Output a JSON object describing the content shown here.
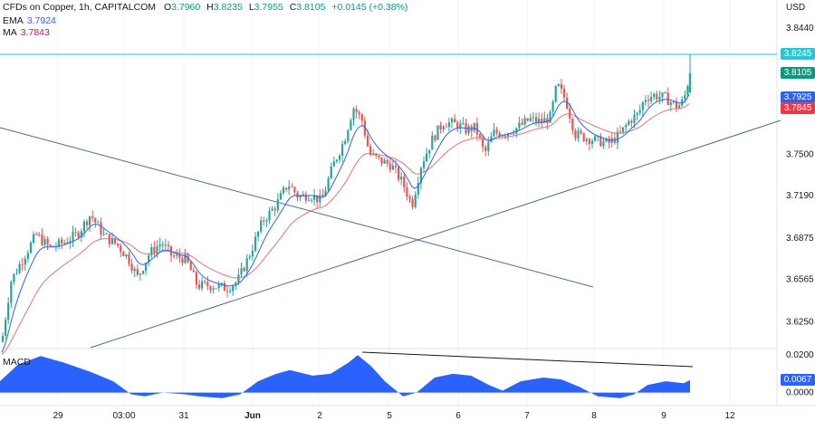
{
  "header": {
    "title": "CFDs on Copper, 1h, CAPITALCOM",
    "open_label": "O",
    "open": "3.7960",
    "high_label": "H",
    "high": "3.8235",
    "low_label": "L",
    "low": "3.7955",
    "close_label": "C",
    "close": "3.8105",
    "change": "+0.0145 (+0.38%)"
  },
  "indicators": {
    "ema_label": "EMA",
    "ema_value": "3.7924",
    "ma_label": "MA",
    "ma_value": "3.7843",
    "macd_label": "MACD"
  },
  "colors": {
    "up": "#26a69a",
    "down": "#ef5350",
    "ema": "#2962ff",
    "ma": "#e57373",
    "trend": "#4a6c8f",
    "macd_fill": "#2962ff",
    "hline": "#26c6da"
  },
  "chart_data": [
    {
      "type": "candlestick",
      "title": "CFDs on Copper, 1h, CAPITALCOM",
      "currency": "USD",
      "ylim": [
        3.605,
        3.865
      ],
      "y_ticks": [
        "3.8440",
        "3.8245",
        "3.8105",
        "3.7925",
        "3.7845",
        "3.7500",
        "3.7190",
        "3.6875",
        "3.6565",
        "3.6250"
      ],
      "x_ticks": [
        "29",
        "03:00",
        "31",
        "Jun",
        "2",
        "5",
        "6",
        "7",
        "8",
        "9",
        "12"
      ],
      "series": [
        {
          "name": "EMA",
          "last": 3.7924
        },
        {
          "name": "MA",
          "last": 3.7843
        }
      ],
      "price_tags": [
        {
          "value": "3.8245",
          "color": "#26c6da"
        },
        {
          "value": "3.8105",
          "color": "#089981"
        },
        {
          "value": "3.7925",
          "color": "#2962ff"
        },
        {
          "value": "3.7845",
          "color": "#f23645"
        }
      ],
      "horizontal_line": 3.8245,
      "last_close": 3.8105
    },
    {
      "type": "area",
      "title": "MACD",
      "ylim": [
        -0.006,
        0.022
      ],
      "y_ticks": [
        "0.0200",
        "0.0000"
      ],
      "last_tag": "0.0067"
    }
  ]
}
